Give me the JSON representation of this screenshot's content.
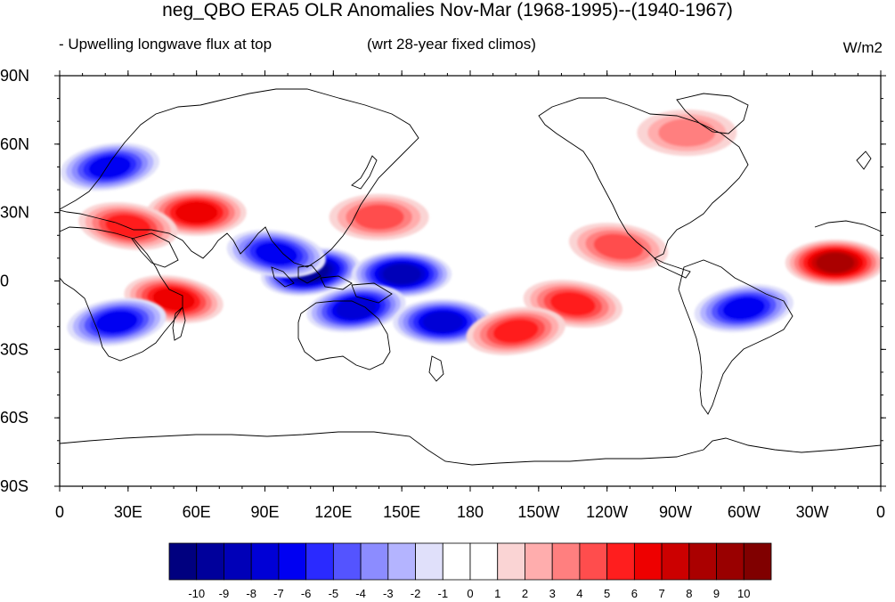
{
  "header": {
    "title": "neg_QBO ERA5 OLR Anomalies Nov-Mar (1968-1995)--(1940-1967)",
    "subtitle_left": "- Upwelling longwave flux at top",
    "subtitle_center": "(wrt 28-year fixed climos)",
    "units": "W/m2"
  },
  "map": {
    "lat_ticks": [
      "90N",
      "60N",
      "30N",
      "0",
      "30S",
      "60S",
      "90S"
    ],
    "lon_ticks": [
      "0",
      "30E",
      "60E",
      "90E",
      "120E",
      "150E",
      "180",
      "150W",
      "120W",
      "90W",
      "60W",
      "30W",
      "0"
    ],
    "anomaly_regions": [
      {
        "lon": 22,
        "lat": 50,
        "value": -6
      },
      {
        "lon": 60,
        "lat": 30,
        "value": 6
      },
      {
        "lon": 30,
        "lat": 24,
        "value": 5
      },
      {
        "lon": 110,
        "lat": 4,
        "value": -9
      },
      {
        "lon": 150,
        "lat": 3,
        "value": -8
      },
      {
        "lon": 95,
        "lat": 12,
        "value": -6
      },
      {
        "lon": 130,
        "lat": -12,
        "value": -7
      },
      {
        "lon": 168,
        "lat": -18,
        "value": -7
      },
      {
        "lon": 50,
        "lat": -8,
        "value": 6
      },
      {
        "lon": 25,
        "lat": -18,
        "value": -6
      },
      {
        "lon": 340,
        "lat": 8,
        "value": 8
      },
      {
        "lon": 225,
        "lat": -10,
        "value": 5
      },
      {
        "lon": 300,
        "lat": -12,
        "value": -6
      },
      {
        "lon": 140,
        "lat": 28,
        "value": 4
      },
      {
        "lon": 245,
        "lat": 15,
        "value": 4
      },
      {
        "lon": 200,
        "lat": -22,
        "value": 5
      },
      {
        "lon": 275,
        "lat": 65,
        "value": 3
      }
    ]
  },
  "colorbar": {
    "labels": [
      "-10",
      "-9",
      "-8",
      "-7",
      "-6",
      "-5",
      "-4",
      "-3",
      "-2",
      "-1",
      "0",
      "1",
      "2",
      "3",
      "4",
      "5",
      "6",
      "7",
      "8",
      "9",
      "10"
    ],
    "colors": [
      "#00007f",
      "#00009b",
      "#0000b8",
      "#0000d6",
      "#0000f2",
      "#2a2aff",
      "#5454ff",
      "#8c8cff",
      "#b4b4ff",
      "#e0e0fa",
      "#ffffff",
      "#ffffff",
      "#fad4d4",
      "#ffadad",
      "#ff7f7f",
      "#ff4d4d",
      "#ff1e1e",
      "#ee0000",
      "#cc0000",
      "#aa0000",
      "#990000",
      "#800000"
    ]
  }
}
